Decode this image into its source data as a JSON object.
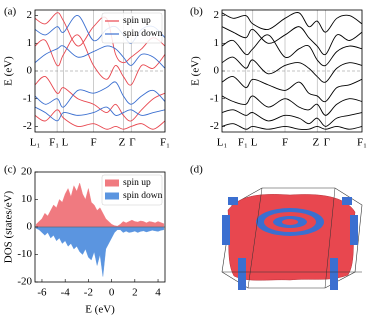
{
  "chart_data": [
    {
      "type": "bands",
      "panel_label": "(a)",
      "ylabel": "E (eV)",
      "legend": "upper right",
      "x": [
        0,
        0.08,
        0.17,
        0.22,
        0.33,
        0.45,
        0.55,
        0.62,
        0.68,
        0.74,
        0.82,
        0.91,
        1.0
      ],
      "xlim": [
        0,
        1
      ],
      "ylim": [
        -2.2,
        2.2
      ],
      "yticks": [
        -2,
        -1,
        0,
        1,
        2
      ],
      "fermi_level": 0,
      "xticks": [
        {
          "value": 0,
          "label": "L₁"
        },
        {
          "value": 0.17,
          "label": "F₁"
        },
        {
          "value": 0.22,
          "label": "L"
        },
        {
          "value": 0.45,
          "label": "F"
        },
        {
          "value": 0.68,
          "label": "Z"
        },
        {
          "value": 0.74,
          "label": "Γ"
        },
        {
          "value": 1.0,
          "label": "F₁"
        }
      ],
      "series": [
        {
          "name": "spin up",
          "color": "#e8474f",
          "bands": [
            [
              1.9,
              1.7,
              2.1,
              1.8,
              0.9,
              1.6,
              1.9,
              0.6,
              0.3,
              0.5,
              0.8,
              1.2,
              0.9
            ],
            [
              0.9,
              1.1,
              0.2,
              0.6,
              1.3,
              0.2,
              -0.3,
              0.2,
              -0.2,
              -0.5,
              0.2,
              0.1,
              0.6
            ],
            [
              -0.5,
              -0.2,
              -0.8,
              -0.6,
              -1.0,
              -1.2,
              -1.5,
              -1.2,
              -1.6,
              -1.8,
              -1.4,
              -1.0,
              -0.8
            ],
            [
              -1.6,
              -1.8,
              -1.4,
              -1.7,
              -2.0,
              -1.9,
              -2.1,
              -2.0,
              -2.1,
              -2.0,
              -1.9,
              -2.1,
              -1.8
            ]
          ]
        },
        {
          "name": "spin down",
          "color": "#3b6fd0",
          "bands": [
            [
              1.5,
              1.3,
              1.6,
              1.4,
              2.0,
              1.1,
              1.5,
              1.6,
              1.3,
              1.0,
              1.5,
              1.6,
              1.2
            ],
            [
              0.3,
              0.6,
              0.8,
              0.9,
              0.5,
              0.7,
              0.9,
              0.8,
              0.5,
              0.2,
              0.6,
              0.5,
              0.1
            ],
            [
              -0.9,
              -1.2,
              -1.0,
              -1.3,
              -0.7,
              -0.8,
              -0.6,
              -0.4,
              -0.9,
              -1.2,
              -0.9,
              -0.7,
              -1.1
            ],
            [
              -1.3,
              -1.5,
              -1.8,
              -1.5,
              -1.6,
              -1.5,
              -1.3,
              -1.6,
              -1.5,
              -1.4,
              -1.6,
              -1.5,
              -1.4
            ]
          ]
        }
      ]
    },
    {
      "type": "bands",
      "panel_label": "(b)",
      "ylabel": "E (eV)",
      "x": [
        0,
        0.08,
        0.17,
        0.22,
        0.33,
        0.45,
        0.55,
        0.62,
        0.68,
        0.74,
        0.82,
        0.91,
        1.0
      ],
      "xlim": [
        0,
        1
      ],
      "ylim": [
        -2.2,
        2.2
      ],
      "yticks": [
        -2,
        -1,
        0,
        1,
        2
      ],
      "fermi_level": 0,
      "xticks": [
        {
          "value": 0,
          "label": "L₁"
        },
        {
          "value": 0.17,
          "label": "F₁"
        },
        {
          "value": 0.22,
          "label": "L"
        },
        {
          "value": 0.45,
          "label": "F"
        },
        {
          "value": 0.68,
          "label": "Z"
        },
        {
          "value": 0.74,
          "label": "Γ"
        },
        {
          "value": 1.0,
          "label": "F₁"
        }
      ],
      "series": [
        {
          "color": "#000000",
          "bands": [
            [
              2.1,
              1.9,
              2.0,
              1.7,
              1.5,
              1.9,
              2.1,
              1.6,
              1.8,
              1.4,
              1.9,
              2.0,
              1.7
            ],
            [
              1.6,
              1.4,
              1.2,
              1.5,
              1.0,
              1.3,
              1.6,
              1.2,
              0.9,
              0.6,
              1.3,
              1.1,
              1.4
            ],
            [
              0.9,
              1.1,
              0.6,
              0.8,
              1.3,
              0.5,
              0.8,
              0.9,
              0.4,
              0.2,
              0.7,
              0.9,
              0.8
            ],
            [
              0.3,
              0.5,
              0.1,
              0.4,
              -0.1,
              0.2,
              0.3,
              0.1,
              -0.2,
              -0.4,
              0.1,
              0.3,
              0.2
            ],
            [
              -0.4,
              -0.2,
              -0.6,
              -0.3,
              -0.5,
              -0.7,
              -0.4,
              -0.8,
              -0.9,
              -1.1,
              -0.6,
              -0.5,
              -0.3
            ],
            [
              -0.9,
              -1.1,
              -1.2,
              -0.9,
              -1.3,
              -1.0,
              -1.3,
              -1.4,
              -1.2,
              -1.6,
              -1.2,
              -1.0,
              -1.1
            ],
            [
              -1.5,
              -1.4,
              -1.6,
              -1.5,
              -1.8,
              -1.6,
              -1.7,
              -1.9,
              -1.7,
              -2.0,
              -1.7,
              -1.6,
              -1.5
            ],
            [
              -2.0,
              -1.9,
              -2.1,
              -2.0,
              -2.1,
              -2.0,
              -2.1,
              -2.1,
              -2.0,
              -2.1,
              -2.0,
              -2.1,
              -2.0
            ]
          ]
        }
      ]
    },
    {
      "type": "dos",
      "panel_label": "(c)",
      "xlabel": "E (eV)",
      "ylabel": "DOS (states/eV)",
      "legend": "upper right",
      "x": [
        -6.5,
        -6.25,
        -6,
        -5.75,
        -5.5,
        -5.25,
        -5,
        -4.75,
        -4.5,
        -4.25,
        -4,
        -3.75,
        -3.5,
        -3.25,
        -3,
        -2.75,
        -2.5,
        -2.25,
        -2,
        -1.75,
        -1.5,
        -1.25,
        -1,
        -0.75,
        -0.5,
        -0.25,
        0,
        0.25,
        0.5,
        0.75,
        1,
        1.25,
        1.5,
        1.75,
        2,
        2.25,
        2.5,
        2.75,
        3,
        3.25,
        3.5,
        3.75,
        4,
        4.25,
        4.5
      ],
      "xlim": [
        -6.6,
        4.6
      ],
      "ylim": [
        -20,
        20
      ],
      "xticks": [
        -6,
        -4,
        -2,
        0,
        2,
        4
      ],
      "yticks": [
        -20,
        -10,
        0,
        10,
        20
      ],
      "series": [
        {
          "name": "spin up",
          "color": "#f07a80",
          "values": [
            1,
            2,
            3,
            5,
            4,
            6,
            8,
            7,
            10,
            9,
            12,
            14,
            11,
            15,
            13,
            16,
            12,
            10,
            14,
            9,
            8,
            6,
            7,
            5,
            3,
            2,
            1,
            0.5,
            0.3,
            1,
            2,
            1.5,
            2,
            2.5,
            2,
            1.8,
            2.2,
            2,
            1.5,
            2,
            1.8,
            1.5,
            2,
            1.6,
            1.2
          ]
        },
        {
          "name": "spin down",
          "color": "#5b95e0",
          "values": [
            -0.5,
            -1,
            -2,
            -3,
            -2,
            -4,
            -3,
            -5,
            -4,
            -6,
            -5,
            -7,
            -6,
            -8,
            -7,
            -9,
            -10,
            -8,
            -11,
            -12,
            -9,
            -14,
            -10,
            -18,
            -8,
            -6,
            -4,
            -2,
            -1,
            -1,
            -2,
            -1.5,
            -2,
            -1.8,
            -1.5,
            -2,
            -1.6,
            -1.4,
            -1.8,
            -1.5,
            -1.2,
            -1.4,
            -1.6,
            -1.2,
            -1
          ]
        }
      ]
    },
    {
      "type": "fermi-surface",
      "panel_label": "(d)"
    }
  ]
}
